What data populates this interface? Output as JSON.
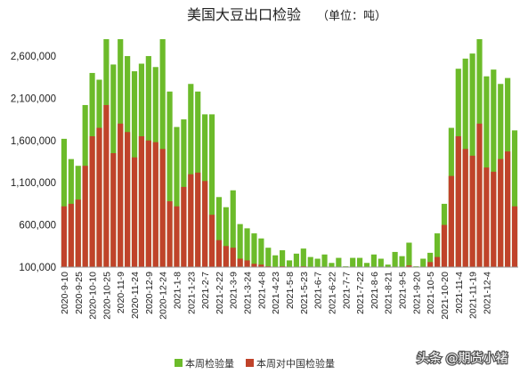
{
  "chart_data": {
    "type": "bar",
    "title": "美国大豆出口检验",
    "subtitle": "（单位：吨）",
    "ylim": [
      100000,
      2800000
    ],
    "yticks": [
      100000,
      600000,
      1100000,
      1600000,
      2100000,
      2600000
    ],
    "ytick_labels": [
      "100,000",
      "600,000",
      "1,100,000",
      "1,600,000",
      "2,100,000",
      "2,600,000"
    ],
    "grid": false,
    "legend_position": "bottom-left",
    "x_tick_labels": [
      {
        "index": 0,
        "label": "2020-9-10"
      },
      {
        "index": 2,
        "label": "2020-9-25"
      },
      {
        "index": 4,
        "label": "2020-10-10"
      },
      {
        "index": 6,
        "label": "2020-10-25"
      },
      {
        "index": 8,
        "label": "2020-11-9"
      },
      {
        "index": 10,
        "label": "2020-11-24"
      },
      {
        "index": 12,
        "label": "2020-12-9"
      },
      {
        "index": 14,
        "label": "2020-12-24"
      },
      {
        "index": 16,
        "label": "2021-1-8"
      },
      {
        "index": 18,
        "label": "2021-1-23"
      },
      {
        "index": 20,
        "label": "2021-2-7"
      },
      {
        "index": 22,
        "label": "2021-2-22"
      },
      {
        "index": 24,
        "label": "2021-3-9"
      },
      {
        "index": 26,
        "label": "2021-3-24"
      },
      {
        "index": 28,
        "label": "2021-4-8"
      },
      {
        "index": 30,
        "label": "2021-4-23"
      },
      {
        "index": 32,
        "label": "2021-5-8"
      },
      {
        "index": 34,
        "label": "2021-5-23"
      },
      {
        "index": 36,
        "label": "2021-6-7"
      },
      {
        "index": 38,
        "label": "2021-6-22"
      },
      {
        "index": 40,
        "label": "2021-7-7"
      },
      {
        "index": 42,
        "label": "2021-7-22"
      },
      {
        "index": 44,
        "label": "2021-8-6"
      },
      {
        "index": 46,
        "label": "2021-8-21"
      },
      {
        "index": 48,
        "label": "2021-9-5"
      },
      {
        "index": 50,
        "label": "2021-9-20"
      },
      {
        "index": 52,
        "label": "2021-10-5"
      },
      {
        "index": 54,
        "label": "2021-10-20"
      },
      {
        "index": 56,
        "label": "2021-11-4"
      },
      {
        "index": 58,
        "label": "2021-11-19"
      },
      {
        "index": 60,
        "label": "2021-12-4"
      }
    ],
    "series": [
      {
        "name": "本周检验量",
        "color": "#6cbb2a",
        "values": [
          1620000,
          1380000,
          1300000,
          2020000,
          2400000,
          2320000,
          2800000,
          2500000,
          2800000,
          2600000,
          2420000,
          2510000,
          2600000,
          2470000,
          2800000,
          2180000,
          1760000,
          1850000,
          2270000,
          2180000,
          1910000,
          1910000,
          930000,
          810000,
          1010000,
          610000,
          560000,
          500000,
          440000,
          330000,
          240000,
          300000,
          180000,
          260000,
          320000,
          220000,
          200000,
          250000,
          150000,
          210000,
          110000,
          210000,
          210000,
          150000,
          250000,
          200000,
          130000,
          280000,
          230000,
          390000,
          110000,
          200000,
          270000,
          500000,
          850000,
          1750000,
          2450000,
          2570000,
          2630000,
          2800000,
          2360000,
          2440000,
          2270000,
          2340000,
          1720000
        ]
      },
      {
        "name": "本周对中国检验量",
        "color": "#c0432a",
        "values": [
          820000,
          850000,
          900000,
          1300000,
          1650000,
          1750000,
          2020000,
          1450000,
          1800000,
          1700000,
          1400000,
          1650000,
          1600000,
          1580000,
          1500000,
          880000,
          820000,
          1050000,
          1200000,
          1220000,
          1120000,
          720000,
          420000,
          350000,
          330000,
          200000,
          180000,
          140000,
          130000,
          110000,
          105000,
          110000,
          105000,
          105000,
          110000,
          105000,
          105000,
          105000,
          102000,
          105000,
          101000,
          102000,
          102000,
          102000,
          102000,
          102000,
          101000,
          105000,
          105000,
          120000,
          101000,
          105000,
          160000,
          220000,
          600000,
          1180000,
          1650000,
          1500000,
          1420000,
          1800000,
          1280000,
          1230000,
          1380000,
          1470000,
          820000
        ]
      }
    ]
  },
  "watermark": "头条 @期货小褚"
}
